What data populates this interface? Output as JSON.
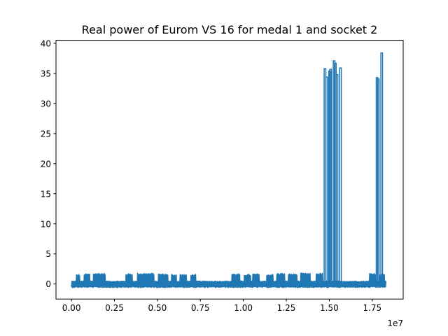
{
  "chart_data": {
    "type": "line",
    "title": "Real power of Eurom VS 16 for medal 1 and socket 2",
    "xlabel": "",
    "ylabel": "",
    "x_offset_label": "1e7",
    "xlim": [
      -900000.0,
      19300000.0
    ],
    "ylim": [
      -2.5,
      40.5
    ],
    "grid": false,
    "x_ticks": [
      0,
      2500000,
      5000000,
      7500000,
      10000000,
      12500000,
      15000000,
      17500000
    ],
    "x_tick_labels": [
      "0.00",
      "0.25",
      "0.50",
      "0.75",
      "1.00",
      "1.25",
      "1.50",
      "1.75"
    ],
    "y_ticks": [
      0,
      5,
      10,
      15,
      20,
      25,
      30,
      35,
      40
    ],
    "y_tick_labels": [
      "0",
      "5",
      "10",
      "15",
      "20",
      "25",
      "30",
      "35",
      "40"
    ],
    "series": [
      {
        "color": "#1f77b4",
        "baseline": {
          "x_start": 0,
          "x_end": 18300000,
          "y_low": -0.6,
          "y_high": 0.5
        },
        "bursts": [
          {
            "x_start": 250000,
            "x_end": 450000,
            "peak": 1.6
          },
          {
            "x_start": 700000,
            "x_end": 1050000,
            "peak": 1.7
          },
          {
            "x_start": 1250000,
            "x_end": 1950000,
            "peak": 1.8
          },
          {
            "x_start": 3150000,
            "x_end": 3550000,
            "peak": 1.7
          },
          {
            "x_start": 3800000,
            "x_end": 4800000,
            "peak": 1.8
          },
          {
            "x_start": 5000000,
            "x_end": 5600000,
            "peak": 1.7
          },
          {
            "x_start": 5800000,
            "x_end": 6100000,
            "peak": 1.6
          },
          {
            "x_start": 6300000,
            "x_end": 6700000,
            "peak": 1.6
          },
          {
            "x_start": 6900000,
            "x_end": 7200000,
            "peak": 1.6
          },
          {
            "x_start": 9300000,
            "x_end": 9800000,
            "peak": 1.7
          },
          {
            "x_start": 10000000,
            "x_end": 10400000,
            "peak": 1.6
          },
          {
            "x_start": 10500000,
            "x_end": 10900000,
            "peak": 1.7
          },
          {
            "x_start": 11300000,
            "x_end": 11700000,
            "peak": 1.6
          },
          {
            "x_start": 11900000,
            "x_end": 12400000,
            "peak": 1.8
          },
          {
            "x_start": 12600000,
            "x_end": 13100000,
            "peak": 1.7
          },
          {
            "x_start": 13300000,
            "x_end": 13900000,
            "peak": 1.8
          },
          {
            "x_start": 14200000,
            "x_end": 14600000,
            "peak": 1.8
          },
          {
            "x_start": 17300000,
            "x_end": 17700000,
            "peak": 1.8
          },
          {
            "x_start": 17900000,
            "x_end": 18200000,
            "peak": 1.7
          }
        ],
        "spikes": [
          {
            "x": 14750000,
            "y": 35.8
          },
          {
            "x": 14850000,
            "y": 34.4
          },
          {
            "x": 15020000,
            "y": 35.4
          },
          {
            "x": 15080000,
            "y": 35.7
          },
          {
            "x": 15280000,
            "y": 37.1
          },
          {
            "x": 15350000,
            "y": 36.7
          },
          {
            "x": 15450000,
            "y": 34.8
          },
          {
            "x": 15650000,
            "y": 35.9
          },
          {
            "x": 17780000,
            "y": 34.3
          },
          {
            "x": 17850000,
            "y": 34.1
          },
          {
            "x": 18050000,
            "y": 38.4
          }
        ]
      }
    ]
  }
}
